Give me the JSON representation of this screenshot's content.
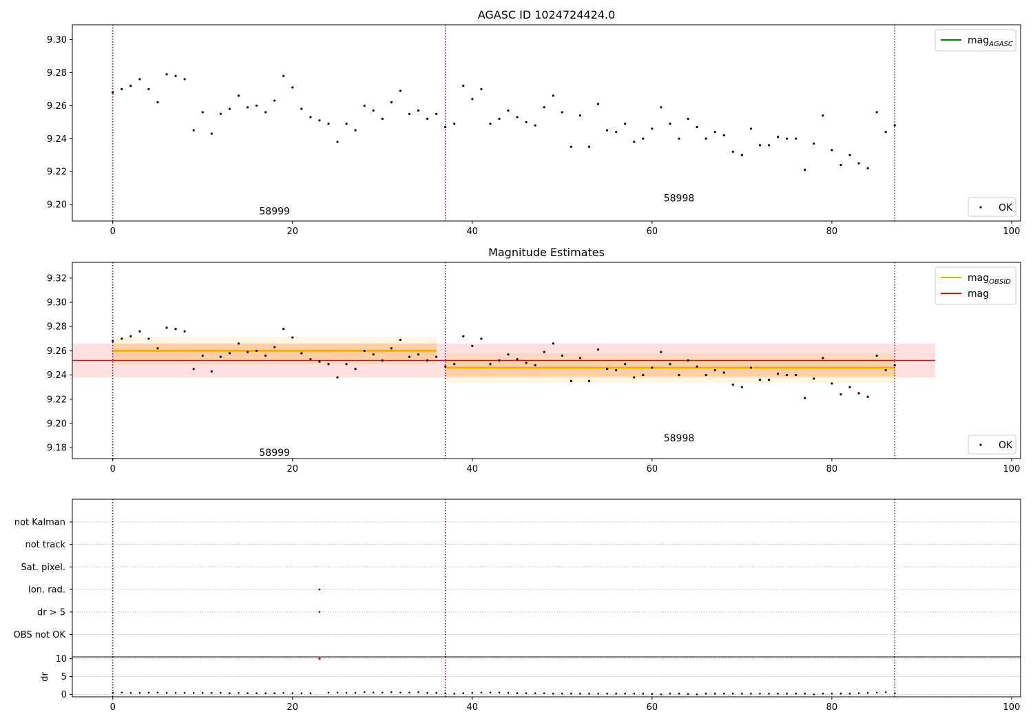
{
  "chart_data": [
    {
      "type": "scatter",
      "title": "AGASC ID 1024724424.0",
      "xlim": [
        -4.5,
        101
      ],
      "ylim": [
        9.19,
        9.309
      ],
      "xticks": [
        0,
        20,
        40,
        60,
        80,
        100
      ],
      "yticks": [
        9.2,
        9.22,
        9.24,
        9.26,
        9.28,
        9.3
      ],
      "ytick_decimals": 2,
      "vlines": [
        0,
        37,
        87
      ],
      "annotations": [
        {
          "text": "58999",
          "x": 18,
          "y": 9.196
        },
        {
          "text": "58998",
          "x": 63,
          "y": 9.204
        }
      ],
      "legend_top": [
        {
          "label": "mag",
          "sub": "AGASC",
          "color": "#008000",
          "kind": "line"
        }
      ],
      "legend_bottom": [
        {
          "label": "OK",
          "color": "#000000",
          "kind": "point"
        }
      ]
    },
    {
      "type": "scatter",
      "title": "Magnitude Estimates",
      "xlim": [
        -4.5,
        101
      ],
      "ylim": [
        9.171,
        9.333
      ],
      "xticks": [
        0,
        20,
        40,
        60,
        80,
        100
      ],
      "yticks": [
        9.18,
        9.2,
        9.22,
        9.24,
        9.26,
        9.28,
        9.3,
        9.32
      ],
      "ytick_decimals": 2,
      "vlines": [
        0,
        37,
        87
      ],
      "annotations": [
        {
          "text": "58999",
          "x": 18,
          "y": 9.176
        },
        {
          "text": "58998",
          "x": 63,
          "y": 9.188
        }
      ],
      "mag": {
        "value": 9.252,
        "band": [
          9.238,
          9.266
        ],
        "xrange": [
          -4.5,
          91.5
        ],
        "color": "#ff0000"
      },
      "mag_obsid": [
        {
          "x": [
            0,
            36
          ],
          "value": 9.26,
          "inner": [
            9.253,
            9.266
          ],
          "outer": [
            9.249,
            9.271
          ]
        },
        {
          "x": [
            37,
            87
          ],
          "value": 9.246,
          "inner": [
            9.239,
            9.252
          ],
          "outer": [
            9.234,
            9.258
          ]
        }
      ],
      "legend_top": [
        {
          "label": "mag",
          "sub": "OBSID",
          "color": "#ffa500",
          "kind": "line"
        },
        {
          "label": "mag",
          "sub": "",
          "color": "#ff0000",
          "kind": "line"
        }
      ],
      "legend_bottom": [
        {
          "label": "OK",
          "color": "#000000",
          "kind": "point"
        }
      ]
    },
    {
      "type": "scatter",
      "title": "",
      "xlim": [
        -4.5,
        101
      ],
      "xticks": [
        0,
        20,
        40,
        60,
        80,
        100
      ],
      "vlines": [
        0,
        37,
        87
      ],
      "flag_categories": [
        "not Kalman",
        "not track",
        "Sat. pixel.",
        "Ion. rad.",
        "dr > 5",
        "OBS not OK"
      ],
      "flag_points": [
        {
          "x": 23,
          "category": "Ion. rad."
        },
        {
          "x": 23,
          "category": "dr > 5"
        }
      ]
    },
    {
      "type": "scatter",
      "title": "",
      "ylabel": "dr",
      "xlim": [
        -4.5,
        101
      ],
      "ylim": [
        -0.7,
        10.5
      ],
      "xticks": [
        0,
        20,
        40,
        60,
        80,
        100
      ],
      "yticks": [
        0,
        5,
        10
      ],
      "vlines": [
        0,
        37,
        87
      ],
      "flagged_points": [
        {
          "x": 23,
          "y": 10,
          "color": "#ff0000"
        }
      ],
      "dr_values": [
        0.4,
        0.5,
        0.4,
        0.4,
        0.5,
        0.5,
        0.4,
        0.4,
        0.4,
        0.4,
        0.4,
        0.4,
        0.4,
        0.3,
        0.4,
        0.3,
        0.3,
        0.3,
        0.3,
        0.4,
        0.3,
        0.3,
        0.3,
        null,
        0.5,
        0.5,
        0.4,
        0.4,
        0.6,
        0.5,
        0.5,
        0.6,
        0.5,
        0.5,
        0.6,
        0.4,
        0.4,
        0.3,
        0.2,
        0.3,
        0.4,
        0.5,
        0.5,
        0.5,
        0.4,
        0.3,
        0.3,
        0.3,
        0.3,
        0.2,
        0.2,
        0.2,
        0.2,
        0.2,
        0.2,
        0.2,
        0.2,
        0.2,
        0.2,
        0.2,
        0.1,
        0.0,
        0.2,
        0.2,
        0.1,
        0.0,
        0.2,
        0.2,
        0.2,
        0.2,
        0.2,
        0.2,
        0.2,
        0.2,
        0.2,
        0.2,
        0.2,
        0.2,
        0.0,
        0.2,
        0.2,
        0.2,
        0.2,
        0.3,
        0.4,
        0.5,
        0.6,
        0.3
      ]
    }
  ],
  "series": {
    "mag_values": [
      9.268,
      9.27,
      9.272,
      9.276,
      9.27,
      9.262,
      9.279,
      9.278,
      9.276,
      9.245,
      9.256,
      9.243,
      9.255,
      9.258,
      9.266,
      9.259,
      9.26,
      9.256,
      9.263,
      9.278,
      9.271,
      9.258,
      9.253,
      9.251,
      9.249,
      9.238,
      9.249,
      9.245,
      9.26,
      9.257,
      9.252,
      9.262,
      9.269,
      9.255,
      9.257,
      9.252,
      9.255,
      9.247,
      9.249,
      9.272,
      9.264,
      9.27,
      9.249,
      9.252,
      9.257,
      9.253,
      9.25,
      9.248,
      9.259,
      9.266,
      9.256,
      9.235,
      9.254,
      9.235,
      9.261,
      9.245,
      9.244,
      9.249,
      9.238,
      9.24,
      9.246,
      9.259,
      9.249,
      9.24,
      9.252,
      9.247,
      9.24,
      9.244,
      9.242,
      9.232,
      9.23,
      9.246,
      9.236,
      9.236,
      9.241,
      9.24,
      9.24,
      9.221,
      9.237,
      9.254,
      9.233,
      9.224,
      9.23,
      9.225,
      9.222,
      9.256,
      9.244,
      9.248
    ]
  }
}
